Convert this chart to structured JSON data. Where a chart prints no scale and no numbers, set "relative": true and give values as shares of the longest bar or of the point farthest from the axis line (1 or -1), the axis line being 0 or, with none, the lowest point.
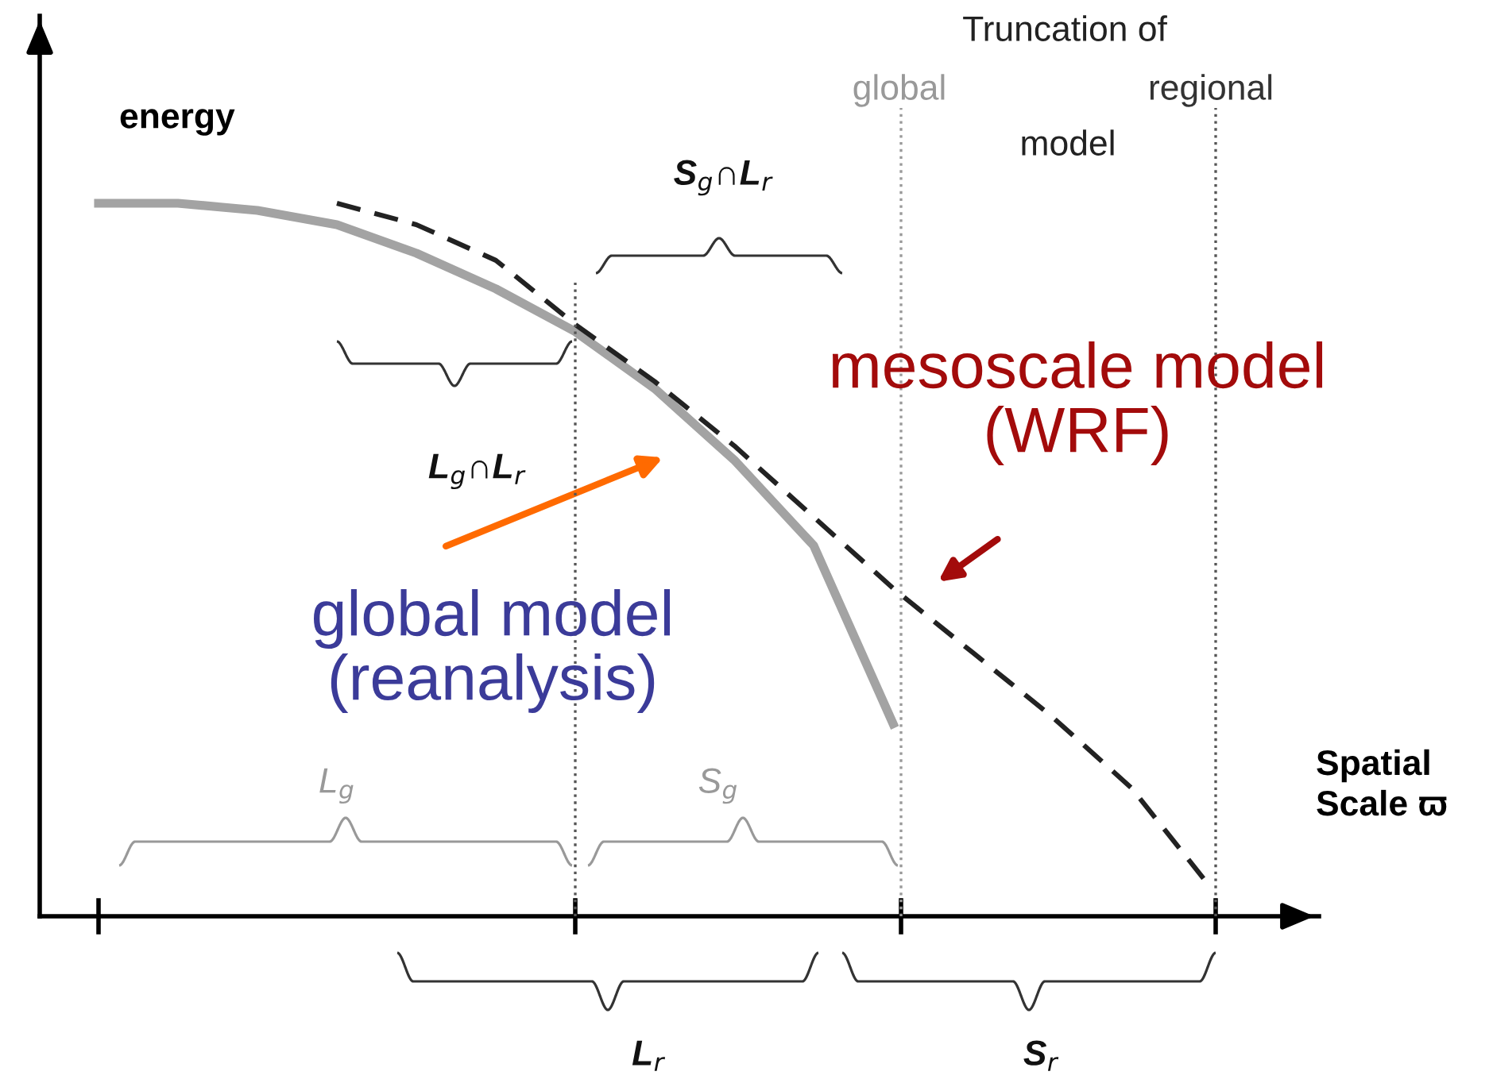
{
  "chart_data": {
    "type": "line",
    "relative": true,
    "xlabel": "Spatial\nScale ϖ",
    "ylabel": "energy",
    "categories": [
      null,
      null,
      null,
      null,
      null,
      null,
      null,
      null,
      null,
      null,
      null,
      null,
      null,
      null,
      null
    ],
    "series": [
      {
        "color": "#a3a3a3",
        "line_style": "solid",
        "values": [
          1.0,
          1.0,
          0.99,
          0.97,
          0.93,
          0.88,
          0.82,
          0.74,
          0.64,
          0.52,
          0.27,
          null,
          null,
          null,
          null
        ]
      },
      {
        "color": "#222222",
        "line_style": "dashed",
        "values": [
          null,
          null,
          null,
          1.0,
          0.97,
          0.92,
          0.83,
          0.75,
          0.66,
          0.56,
          0.46,
          0.37,
          0.28,
          0.18,
          0.04
        ]
      }
    ],
    "annotations": [
      "Truncation of",
      "global",
      "regional",
      "model",
      "S$_{g}$∩L$_{r}$",
      "L$_{g}$∩L$_{r}$",
      "mesoscale model\n(WRF)",
      "global model\n(reanalysis)",
      "L$_{g}$",
      "S$_{g}$",
      "L$_{r}$",
      "S$_{r}$"
    ],
    "legend": false,
    "marker": "none"
  }
}
